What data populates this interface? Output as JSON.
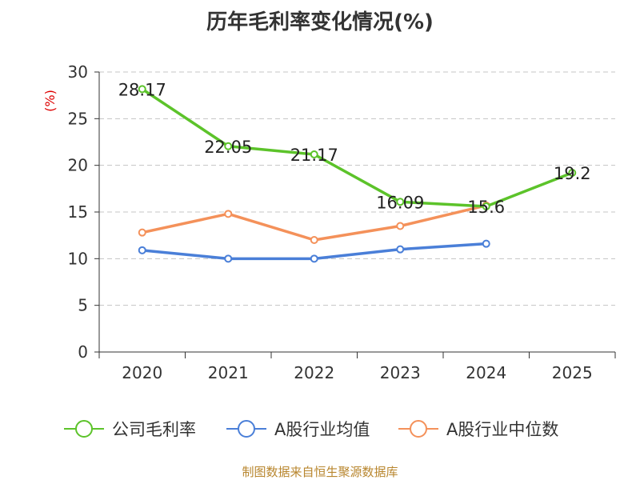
{
  "chart_data": {
    "type": "line",
    "title": "历年毛利率变化情况(%)",
    "ylabel": "(%)",
    "categories": [
      "2020",
      "2021",
      "2022",
      "2023",
      "2024",
      "2025"
    ],
    "ylim": [
      0,
      30
    ],
    "yticks": [
      0,
      5,
      10,
      15,
      20,
      25,
      30
    ],
    "grid": true,
    "legend_position": "bottom",
    "series": [
      {
        "name": "公司毛利率",
        "color": "#5cc32a",
        "values": [
          28.17,
          22.05,
          21.17,
          16.09,
          15.6,
          19.2
        ],
        "labels": [
          "28.17",
          "22.05",
          "21.17",
          "16.09",
          "15.6",
          "19.2"
        ],
        "show_labels": true
      },
      {
        "name": "A股行业均值",
        "color": "#4a7fd8",
        "values": [
          10.9,
          10.0,
          10.0,
          11.0,
          11.6,
          null
        ],
        "show_labels": false
      },
      {
        "name": "A股行业中位数",
        "color": "#f4915a",
        "values": [
          12.8,
          14.8,
          12.0,
          13.5,
          15.7,
          null
        ],
        "show_labels": false
      }
    ]
  },
  "source": "制图数据来自恒生聚源数据库"
}
